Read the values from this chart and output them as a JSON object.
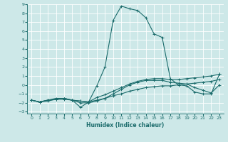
{
  "xlabel": "Humidex (Indice chaleur)",
  "background_color": "#cde8e8",
  "grid_color": "#ffffff",
  "line_color": "#1a6b6b",
  "xlim": [
    -0.5,
    23.5
  ],
  "ylim": [
    -3.2,
    9.0
  ],
  "xticks": [
    0,
    1,
    2,
    3,
    4,
    5,
    6,
    7,
    8,
    9,
    10,
    11,
    12,
    13,
    14,
    15,
    16,
    17,
    18,
    19,
    20,
    21,
    22,
    23
  ],
  "yticks": [
    -3,
    -2,
    -1,
    0,
    1,
    2,
    3,
    4,
    5,
    6,
    7,
    8,
    9
  ],
  "lines": [
    {
      "x": [
        0,
        1,
        2,
        3,
        4,
        5,
        6,
        7,
        8,
        9,
        10,
        11,
        12,
        13,
        14,
        15,
        16,
        17,
        18,
        19,
        20,
        21,
        22,
        23
      ],
      "y": [
        -1.7,
        -1.9,
        -1.7,
        -1.5,
        -1.5,
        -1.7,
        -2.5,
        -1.9,
        -0.1,
        2.0,
        7.2,
        8.8,
        8.5,
        8.3,
        7.5,
        5.7,
        5.3,
        0.7,
        0.0,
        -0.1,
        -0.8,
        -1.0,
        -1.0,
        1.2
      ]
    },
    {
      "x": [
        0,
        1,
        2,
        3,
        4,
        5,
        6,
        7,
        8,
        9,
        10,
        11,
        12,
        13,
        14,
        15,
        16,
        17,
        18,
        19,
        20,
        21,
        22,
        23
      ],
      "y": [
        -1.7,
        -1.9,
        -1.7,
        -1.6,
        -1.5,
        -1.7,
        -1.8,
        -1.9,
        -1.4,
        -1.1,
        -0.7,
        -0.3,
        0.1,
        0.4,
        0.6,
        0.7,
        0.7,
        0.6,
        0.6,
        0.7,
        0.8,
        0.9,
        1.0,
        1.2
      ]
    },
    {
      "x": [
        0,
        1,
        2,
        3,
        4,
        5,
        6,
        7,
        8,
        9,
        10,
        11,
        12,
        13,
        14,
        15,
        16,
        17,
        18,
        19,
        20,
        21,
        22,
        23
      ],
      "y": [
        -1.7,
        -1.9,
        -1.7,
        -1.6,
        -1.5,
        -1.7,
        -1.8,
        -1.9,
        -1.7,
        -1.5,
        -1.2,
        -1.0,
        -0.7,
        -0.5,
        -0.3,
        -0.2,
        -0.1,
        -0.1,
        0.0,
        0.1,
        0.2,
        0.3,
        0.4,
        0.6
      ]
    },
    {
      "x": [
        0,
        1,
        2,
        3,
        4,
        5,
        6,
        7,
        8,
        9,
        10,
        11,
        12,
        13,
        14,
        15,
        16,
        17,
        18,
        19,
        20,
        21,
        22,
        23
      ],
      "y": [
        -1.7,
        -1.9,
        -1.8,
        -1.6,
        -1.6,
        -1.7,
        -2.0,
        -2.0,
        -1.8,
        -1.5,
        -1.0,
        -0.5,
        0.0,
        0.3,
        0.5,
        0.5,
        0.5,
        0.3,
        0.2,
        0.1,
        -0.3,
        -0.6,
        -0.9,
        0.0
      ]
    }
  ]
}
